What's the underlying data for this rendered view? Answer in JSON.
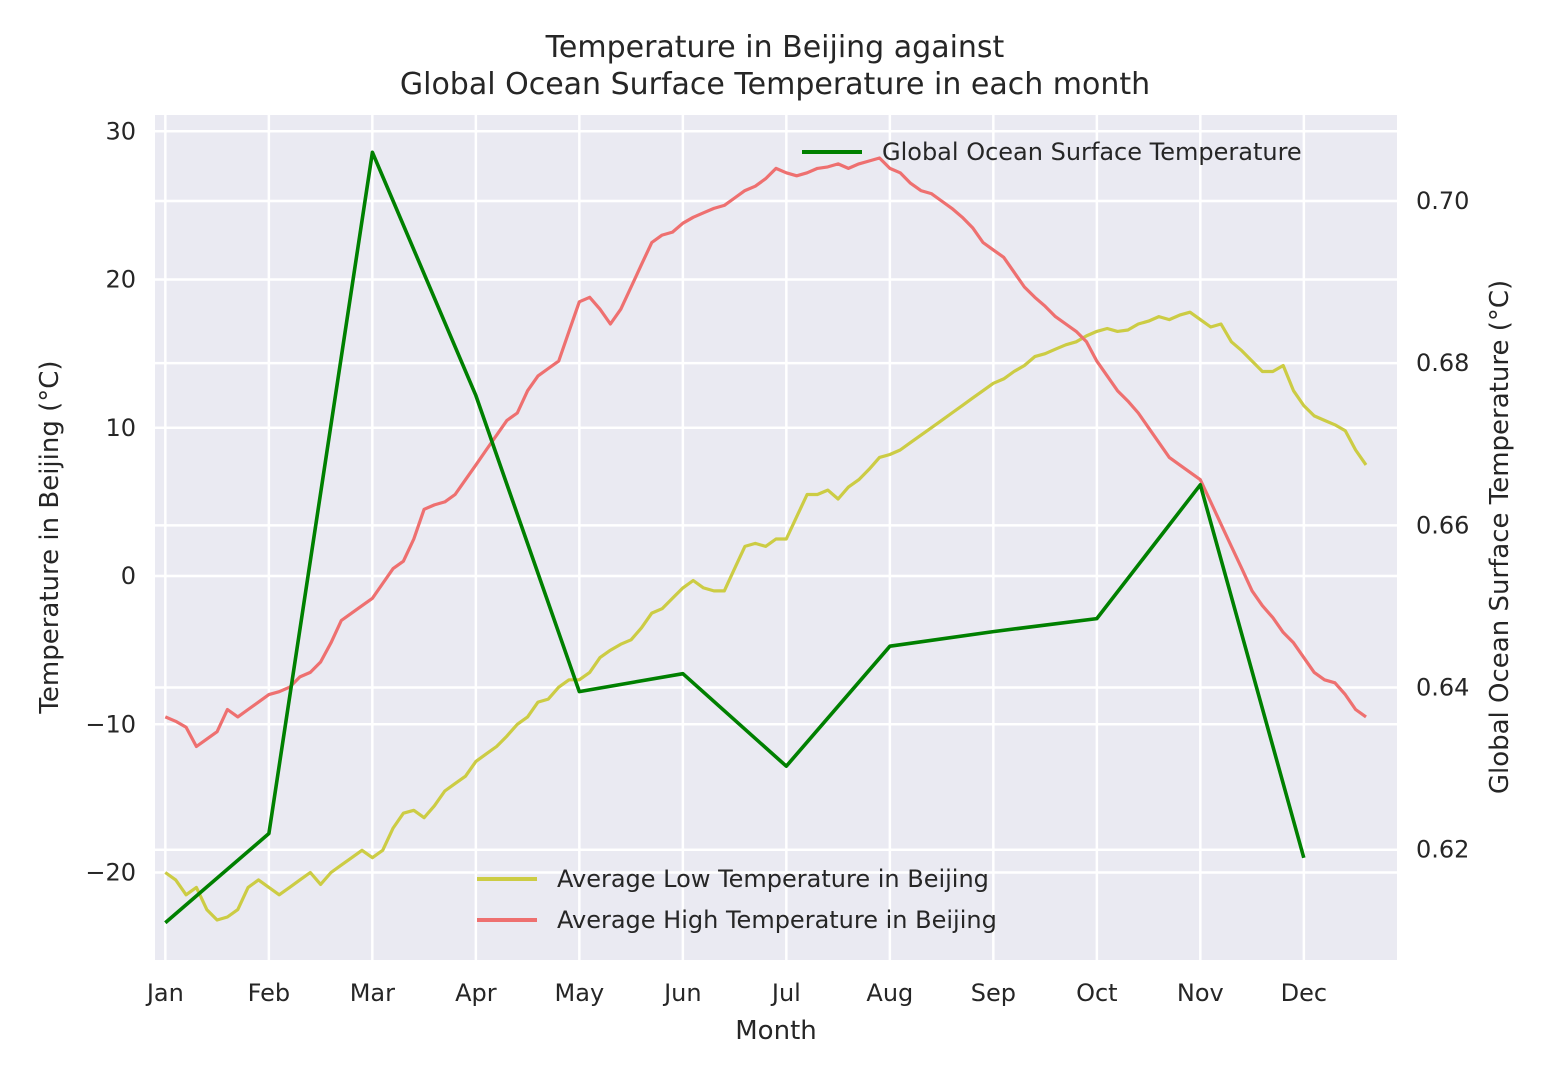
{
  "chart_data": {
    "type": "line",
    "title": [
      "Temperature in Beijing against",
      "Global Ocean Surface Temperature in each month"
    ],
    "xlabel": "Month",
    "ylabel_left": "Temperature in Beijing (°C)",
    "ylabel_right": "Global Ocean Surface Temperature (°C)",
    "x_tick_labels": [
      "Jan",
      "Feb",
      "Mar",
      "Apr",
      "May",
      "Jun",
      "Jul",
      "Aug",
      "Sep",
      "Oct",
      "Nov",
      "Dec"
    ],
    "xlim": [
      -0.1,
      11.9
    ],
    "ylim_left": [
      -25.9,
      31.1
    ],
    "ylim_right": [
      0.6064,
      0.7106
    ],
    "yticks_left": [
      -20,
      -10,
      0,
      10,
      20,
      30
    ],
    "yticks_left_labels": [
      "−20",
      "−10",
      "0",
      "10",
      "20",
      "30"
    ],
    "yticks_right": [
      0.62,
      0.64,
      0.66,
      0.68,
      0.7
    ],
    "yticks_right_labels": [
      "0.62",
      "0.64",
      "0.66",
      "0.68",
      "0.70"
    ],
    "grid": true,
    "background": "#eaeaf2",
    "series_left": [
      {
        "name": "Average Low Temperature in Beijing",
        "color": "#cccc44",
        "x": [
          0.0,
          0.1,
          0.2,
          0.3,
          0.4,
          0.5,
          0.6,
          0.7,
          0.8,
          0.9,
          1.0,
          1.1,
          1.2,
          1.3,
          1.4,
          1.5,
          1.6,
          1.7,
          1.8,
          1.9,
          2.0,
          2.1,
          2.2,
          2.3,
          2.4,
          2.5,
          2.6,
          2.7,
          2.8,
          2.9,
          3.0,
          3.1,
          3.2,
          3.3,
          3.4,
          3.5,
          3.6,
          3.7,
          3.8,
          3.9,
          4.0,
          4.1,
          4.2,
          4.3,
          4.4,
          4.5,
          4.6,
          4.7,
          4.8,
          4.9,
          5.0,
          5.1,
          5.2,
          5.3,
          5.4,
          5.5,
          5.6,
          5.7,
          5.8,
          5.9,
          6.0,
          6.1,
          6.2,
          6.3,
          6.4,
          6.5,
          6.6,
          6.7,
          6.8,
          6.9,
          7.0,
          7.1,
          7.2,
          7.3,
          7.4,
          7.5,
          7.6,
          7.7,
          7.8,
          7.9,
          8.0,
          8.1,
          8.2,
          8.3,
          8.4,
          8.5,
          8.6,
          8.7,
          8.8,
          8.9,
          9.0,
          9.1,
          9.2,
          9.3,
          9.4,
          9.5,
          9.6,
          9.7,
          9.8,
          9.9,
          10.0,
          10.1,
          10.2,
          10.3,
          10.4,
          10.5,
          10.6,
          10.7,
          10.8,
          10.9,
          11.0,
          11.1,
          11.2,
          11.3,
          11.4,
          11.5,
          11.6
        ],
        "values": [
          -20.0,
          -20.5,
          -21.5,
          -21.0,
          -22.5,
          -23.2,
          -23.0,
          -22.5,
          -21.0,
          -20.5,
          -21.0,
          -21.5,
          -21.0,
          -20.5,
          -20.0,
          -20.8,
          -20.0,
          -19.5,
          -19.0,
          -18.5,
          -19.0,
          -18.5,
          -17.0,
          -16.0,
          -15.8,
          -16.3,
          -15.5,
          -14.5,
          -14.0,
          -13.5,
          -12.5,
          -12.0,
          -11.5,
          -10.8,
          -10.0,
          -9.5,
          -8.5,
          -8.3,
          -7.5,
          -7.0,
          -7.0,
          -6.5,
          -5.5,
          -5.0,
          -4.6,
          -4.3,
          -3.5,
          -2.5,
          -2.2,
          -1.5,
          -0.8,
          -0.3,
          -0.8,
          -1.0,
          -1.0,
          0.5,
          2.0,
          2.2,
          2.0,
          2.5,
          2.5,
          4.0,
          5.5,
          5.5,
          5.8,
          5.2,
          6.0,
          6.5,
          7.2,
          8.0,
          8.2,
          8.5,
          9.0,
          9.5,
          10.0,
          10.5,
          11.0,
          11.5,
          12.0,
          12.5,
          13.0,
          13.3,
          13.8,
          14.2,
          14.8,
          15.0,
          15.3,
          15.6,
          15.8,
          16.2,
          16.5,
          16.7,
          16.5,
          16.6,
          17.0,
          17.2,
          17.5,
          17.3,
          17.6,
          17.8,
          17.3,
          16.8,
          17.0,
          15.8,
          15.2,
          14.5,
          13.8,
          13.8,
          14.2,
          12.5,
          11.5,
          10.8,
          10.5,
          10.2,
          9.8,
          8.5,
          7.5
        ]
      },
      {
        "name": "Average High Temperature in Beijing",
        "color": "#ee7070",
        "x": [
          0.0,
          0.1,
          0.2,
          0.3,
          0.4,
          0.5,
          0.6,
          0.7,
          0.8,
          0.9,
          1.0,
          1.1,
          1.2,
          1.3,
          1.4,
          1.5,
          1.6,
          1.7,
          1.8,
          1.9,
          2.0,
          2.1,
          2.2,
          2.3,
          2.4,
          2.5,
          2.6,
          2.7,
          2.8,
          2.9,
          3.0,
          3.1,
          3.2,
          3.3,
          3.4,
          3.5,
          3.6,
          3.7,
          3.8,
          3.9,
          4.0,
          4.1,
          4.2,
          4.3,
          4.4,
          4.5,
          4.6,
          4.7,
          4.8,
          4.9,
          5.0,
          5.1,
          5.2,
          5.3,
          5.4,
          5.5,
          5.6,
          5.7,
          5.8,
          5.9,
          6.0,
          6.1,
          6.2,
          6.3,
          6.4,
          6.5,
          6.6,
          6.7,
          6.8,
          6.9,
          7.0,
          7.1,
          7.2,
          7.3,
          7.4,
          7.5,
          7.6,
          7.7,
          7.8,
          7.9,
          8.0,
          8.1,
          8.2,
          8.3,
          8.4,
          8.5,
          8.6,
          8.7,
          8.8,
          8.9,
          9.0,
          9.1,
          9.2,
          9.3,
          9.4,
          9.5,
          9.6,
          9.7,
          9.8,
          9.9,
          10.0,
          10.1,
          10.2,
          10.3,
          10.4,
          10.5,
          10.6,
          10.7,
          10.8,
          10.9,
          11.0,
          11.1,
          11.2,
          11.3,
          11.4,
          11.5,
          11.6
        ],
        "values": [
          -9.5,
          -9.8,
          -10.2,
          -11.5,
          -11.0,
          -10.5,
          -9.0,
          -9.5,
          -9.0,
          -8.5,
          -8.0,
          -7.8,
          -7.5,
          -6.8,
          -6.5,
          -5.8,
          -4.5,
          -3.0,
          -2.5,
          -2.0,
          -1.5,
          -0.5,
          0.5,
          1.0,
          2.5,
          4.5,
          4.8,
          5.0,
          5.5,
          6.5,
          7.5,
          8.5,
          9.5,
          10.5,
          11.0,
          12.5,
          13.5,
          14.0,
          14.5,
          16.5,
          18.5,
          18.8,
          18.0,
          17.0,
          18.0,
          19.5,
          21.0,
          22.5,
          23.0,
          23.2,
          23.8,
          24.2,
          24.5,
          24.8,
          25.0,
          25.5,
          26.0,
          26.3,
          26.8,
          27.5,
          27.2,
          27.0,
          27.2,
          27.5,
          27.6,
          27.8,
          27.5,
          27.8,
          28.0,
          28.2,
          27.5,
          27.2,
          26.5,
          26.0,
          25.8,
          25.3,
          24.8,
          24.2,
          23.5,
          22.5,
          22.0,
          21.5,
          20.5,
          19.5,
          18.8,
          18.2,
          17.5,
          17.0,
          16.5,
          15.8,
          14.5,
          13.5,
          12.5,
          11.8,
          11.0,
          10.0,
          9.0,
          8.0,
          7.5,
          7.0,
          6.5,
          5.0,
          3.5,
          2.0,
          0.5,
          -1.0,
          -2.0,
          -2.8,
          -3.8,
          -4.5,
          -5.5,
          -6.5,
          -7.0,
          -7.2,
          -8.0,
          -9.0,
          -9.5
        ]
      }
    ],
    "series_right": [
      {
        "name": "Global Ocean Surface Temperature",
        "color": "#008000",
        "x": [
          0,
          1,
          2,
          3,
          4,
          5,
          6,
          7,
          8,
          9,
          10,
          11
        ],
        "values": [
          0.611,
          0.622,
          0.706,
          0.676,
          0.6395,
          0.6417,
          0.6303,
          0.6451,
          0.6469,
          0.6485,
          0.665,
          0.619
        ]
      }
    ]
  }
}
